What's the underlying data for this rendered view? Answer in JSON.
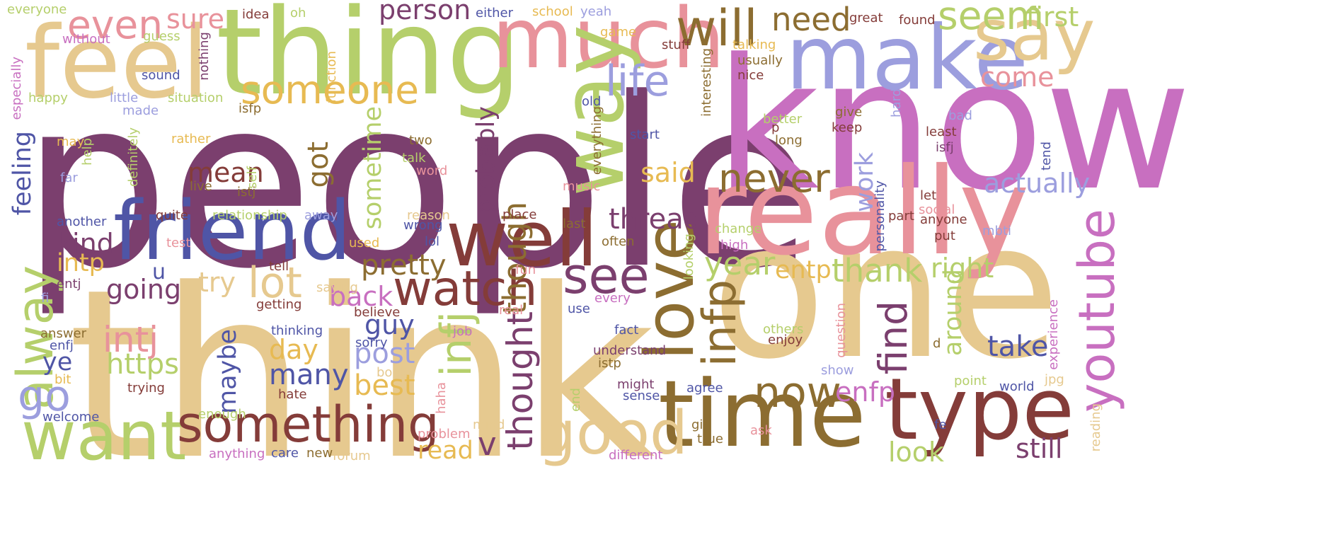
{
  "palette": {
    "plum": "#7b3f6e",
    "sand": "#e6c98f",
    "orchid": "#c86fc0",
    "pink": "#e8929b",
    "lime": "#b5cf6b",
    "lavender": "#9c9ede",
    "navy": "#4f55a6",
    "maroon": "#843c39",
    "olive": "#8c6d31",
    "gold": "#e7ba52"
  },
  "words": [
    {
      "text": "people",
      "color": "plum"
    },
    {
      "text": "think",
      "color": "sand"
    },
    {
      "text": "know",
      "color": "orchid"
    },
    {
      "text": "one",
      "color": "sand"
    },
    {
      "text": "really",
      "color": "pink"
    },
    {
      "text": "thing",
      "color": "lime"
    },
    {
      "text": "feel",
      "color": "sand"
    },
    {
      "text": "time",
      "color": "olive"
    },
    {
      "text": "type",
      "color": "maroon"
    },
    {
      "text": "make",
      "color": "lavender"
    },
    {
      "text": "much",
      "color": "pink"
    },
    {
      "text": "friend",
      "color": "navy"
    },
    {
      "text": "well",
      "color": "maroon"
    },
    {
      "text": "say",
      "color": "sand"
    },
    {
      "text": "want",
      "color": "lime"
    },
    {
      "text": "something",
      "color": "maroon"
    },
    {
      "text": "way",
      "color": "lime"
    },
    {
      "text": "love",
      "color": "olive"
    },
    {
      "text": "good",
      "color": "sand"
    },
    {
      "text": "watch",
      "color": "maroon"
    },
    {
      "text": "will",
      "color": "olive"
    },
    {
      "text": "even",
      "color": "pink"
    },
    {
      "text": "someone",
      "color": "gold"
    },
    {
      "text": "life",
      "color": "lavender"
    },
    {
      "text": "see",
      "color": "plum"
    },
    {
      "text": "now",
      "color": "olive"
    },
    {
      "text": "never",
      "color": "olive"
    },
    {
      "text": "youtube",
      "color": "orchid"
    },
    {
      "text": "infp",
      "color": "olive"
    },
    {
      "text": "alway",
      "color": "lime"
    },
    {
      "text": "seem",
      "color": "lime"
    },
    {
      "text": "intj",
      "color": "pink"
    },
    {
      "text": "infj",
      "color": "lime"
    },
    {
      "text": "lot",
      "color": "sand"
    },
    {
      "text": "go",
      "color": "lavender"
    },
    {
      "text": "need",
      "color": "olive"
    },
    {
      "text": "person",
      "color": "plum"
    },
    {
      "text": "first",
      "color": "lime"
    },
    {
      "text": "sure",
      "color": "pink"
    },
    {
      "text": "thought",
      "color": "plum"
    },
    {
      "text": "though",
      "color": "olive"
    },
    {
      "text": "find",
      "color": "plum"
    },
    {
      "text": "thank",
      "color": "lime"
    },
    {
      "text": "year",
      "color": "lime"
    },
    {
      "text": "thread",
      "color": "plum"
    },
    {
      "text": "pretty",
      "color": "olive"
    },
    {
      "text": "v",
      "color": "plum"
    },
    {
      "text": "https",
      "color": "lime"
    },
    {
      "text": "many",
      "color": "navy"
    },
    {
      "text": "post",
      "color": "lavender"
    },
    {
      "text": "best",
      "color": "gold"
    },
    {
      "text": "enfp",
      "color": "orchid"
    },
    {
      "text": "take",
      "color": "navy"
    },
    {
      "text": "right",
      "color": "lime"
    },
    {
      "text": "actually",
      "color": "lavender"
    },
    {
      "text": "come",
      "color": "pink"
    },
    {
      "text": "look",
      "color": "lime"
    },
    {
      "text": "still",
      "color": "plum"
    },
    {
      "text": "got",
      "color": "olive"
    },
    {
      "text": "mean",
      "color": "maroon"
    },
    {
      "text": "kind",
      "color": "plum"
    },
    {
      "text": "said",
      "color": "gold"
    },
    {
      "text": "going",
      "color": "plum"
    },
    {
      "text": "try",
      "color": "sand"
    },
    {
      "text": "back",
      "color": "orchid"
    },
    {
      "text": "guy",
      "color": "navy"
    },
    {
      "text": "day",
      "color": "gold"
    },
    {
      "text": "intp",
      "color": "gold"
    },
    {
      "text": "entp",
      "color": "gold"
    },
    {
      "text": "feeling",
      "color": "navy"
    },
    {
      "text": "sometime",
      "color": "lime"
    },
    {
      "text": "probably",
      "color": "plum"
    },
    {
      "text": "maybe",
      "color": "navy"
    },
    {
      "text": "work",
      "color": "lavender"
    },
    {
      "text": "around",
      "color": "lime"
    },
    {
      "text": "read",
      "color": "gold"
    },
    {
      "text": "ye",
      "color": "navy"
    },
    {
      "text": "u",
      "color": "navy"
    },
    {
      "text": "everyone",
      "color": "lime"
    },
    {
      "text": "without",
      "color": "orchid"
    },
    {
      "text": "guess",
      "color": "lime"
    },
    {
      "text": "idea",
      "color": "maroon"
    },
    {
      "text": "oh",
      "color": "lime"
    },
    {
      "text": "either",
      "color": "navy"
    },
    {
      "text": "school",
      "color": "gold"
    },
    {
      "text": "yeah",
      "color": "lavender"
    },
    {
      "text": "great",
      "color": "maroon"
    },
    {
      "text": "found",
      "color": "maroon"
    },
    {
      "text": "especially",
      "color": "orchid"
    },
    {
      "text": "happy",
      "color": "lime"
    },
    {
      "text": "sound",
      "color": "navy"
    },
    {
      "text": "little",
      "color": "lavender"
    },
    {
      "text": "made",
      "color": "lavender"
    },
    {
      "text": "situation",
      "color": "lime"
    },
    {
      "text": "nothing",
      "color": "plum"
    },
    {
      "text": "function",
      "color": "gold"
    },
    {
      "text": "game",
      "color": "gold"
    },
    {
      "text": "stuff",
      "color": "maroon"
    },
    {
      "text": "talking",
      "color": "gold"
    },
    {
      "text": "usually",
      "color": "olive"
    },
    {
      "text": "nice",
      "color": "maroon"
    },
    {
      "text": "old",
      "color": "navy"
    },
    {
      "text": "isfp",
      "color": "olive"
    },
    {
      "text": "interesting",
      "color": "olive"
    },
    {
      "text": "hard",
      "color": "lavender"
    },
    {
      "text": "give",
      "color": "olive"
    },
    {
      "text": "keep",
      "color": "maroon"
    },
    {
      "text": "better",
      "color": "lime"
    },
    {
      "text": "p",
      "color": "maroon"
    },
    {
      "text": "bad",
      "color": "lavender"
    },
    {
      "text": "least",
      "color": "maroon"
    },
    {
      "text": "isfj",
      "color": "plum"
    },
    {
      "text": "long",
      "color": "olive"
    },
    {
      "text": "start",
      "color": "navy"
    },
    {
      "text": "may",
      "color": "gold"
    },
    {
      "text": "rather",
      "color": "gold"
    },
    {
      "text": "two",
      "color": "olive"
    },
    {
      "text": "help",
      "color": "lime"
    },
    {
      "text": "definitely",
      "color": "lime"
    },
    {
      "text": "talk",
      "color": "lime"
    },
    {
      "text": "word",
      "color": "pink"
    },
    {
      "text": "everything",
      "color": "olive"
    },
    {
      "text": "far",
      "color": "lavender"
    },
    {
      "text": "self",
      "color": "lime"
    },
    {
      "text": "live",
      "color": "olive"
    },
    {
      "text": "istj",
      "color": "olive"
    },
    {
      "text": "music",
      "color": "pink"
    },
    {
      "text": "tend",
      "color": "navy"
    },
    {
      "text": "let",
      "color": "maroon"
    },
    {
      "text": "personality",
      "color": "navy"
    },
    {
      "text": "social",
      "color": "pink"
    },
    {
      "text": "anyone",
      "color": "maroon"
    },
    {
      "text": "part",
      "color": "maroon"
    },
    {
      "text": "put",
      "color": "maroon"
    },
    {
      "text": "mbti",
      "color": "lavender"
    },
    {
      "text": "another",
      "color": "navy"
    },
    {
      "text": "quite",
      "color": "maroon"
    },
    {
      "text": "relationship",
      "color": "lime"
    },
    {
      "text": "away",
      "color": "lavender"
    },
    {
      "text": "reason",
      "color": "sand"
    },
    {
      "text": "place",
      "color": "maroon"
    },
    {
      "text": "last",
      "color": "olive"
    },
    {
      "text": "wrong",
      "color": "navy"
    },
    {
      "text": "change",
      "color": "lime"
    },
    {
      "text": "test",
      "color": "pink"
    },
    {
      "text": "used",
      "color": "gold"
    },
    {
      "text": "lol",
      "color": "navy"
    },
    {
      "text": "often",
      "color": "olive"
    },
    {
      "text": "high",
      "color": "orchid"
    },
    {
      "text": "tell",
      "color": "maroon"
    },
    {
      "text": "fun",
      "color": "pink"
    },
    {
      "text": "looking",
      "color": "lime"
    },
    {
      "text": "entj",
      "color": "plum"
    },
    {
      "text": "saying",
      "color": "sand"
    },
    {
      "text": "fi",
      "color": "lavender"
    },
    {
      "text": "getting",
      "color": "maroon"
    },
    {
      "text": "every",
      "color": "orchid"
    },
    {
      "text": "real",
      "color": "pink"
    },
    {
      "text": "believe",
      "color": "maroon"
    },
    {
      "text": "use",
      "color": "navy"
    },
    {
      "text": "answer",
      "color": "olive"
    },
    {
      "text": "thinking",
      "color": "navy"
    },
    {
      "text": "job",
      "color": "orchid"
    },
    {
      "text": "fact",
      "color": "navy"
    },
    {
      "text": "others",
      "color": "lime"
    },
    {
      "text": "question",
      "color": "pink"
    },
    {
      "text": "experience",
      "color": "orchid"
    },
    {
      "text": "enfj",
      "color": "navy"
    },
    {
      "text": "sorry",
      "color": "navy"
    },
    {
      "text": "understand",
      "color": "plum"
    },
    {
      "text": "enjoy",
      "color": "maroon"
    },
    {
      "text": "d",
      "color": "olive"
    },
    {
      "text": "bit",
      "color": "gold"
    },
    {
      "text": "book",
      "color": "sand"
    },
    {
      "text": "istp",
      "color": "olive"
    },
    {
      "text": "show",
      "color": "lavender"
    },
    {
      "text": "point",
      "color": "lime"
    },
    {
      "text": "jpg",
      "color": "sand"
    },
    {
      "text": "trying",
      "color": "maroon"
    },
    {
      "text": "haha",
      "color": "pink"
    },
    {
      "text": "might",
      "color": "plum"
    },
    {
      "text": "agree",
      "color": "navy"
    },
    {
      "text": "world",
      "color": "navy"
    },
    {
      "text": "hate",
      "color": "maroon"
    },
    {
      "text": "sense",
      "color": "navy"
    },
    {
      "text": "end",
      "color": "lime"
    },
    {
      "text": "welcome",
      "color": "navy"
    },
    {
      "text": "enough",
      "color": "lime"
    },
    {
      "text": "problem",
      "color": "pink"
    },
    {
      "text": "mind",
      "color": "sand"
    },
    {
      "text": "girl",
      "color": "olive"
    },
    {
      "text": "ask",
      "color": "pink"
    },
    {
      "text": "fe",
      "color": "navy"
    },
    {
      "text": "true",
      "color": "olive"
    },
    {
      "text": "reading",
      "color": "sand"
    },
    {
      "text": "anything",
      "color": "orchid"
    },
    {
      "text": "care",
      "color": "navy"
    },
    {
      "text": "new",
      "color": "olive"
    },
    {
      "text": "forum",
      "color": "sand"
    },
    {
      "text": "different",
      "color": "orchid"
    }
  ]
}
